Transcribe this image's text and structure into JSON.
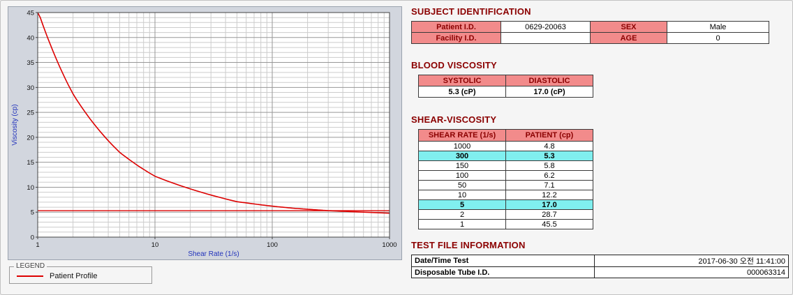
{
  "colors": {
    "accent_red": "#8b0000",
    "cell_pink": "#f28b8b",
    "highlight_cyan": "#80efef",
    "series_red": "#dd0000",
    "axis_label_blue": "#2233bb"
  },
  "chart_data": {
    "type": "line",
    "title": "",
    "xlabel": "Shear Rate (1/s)",
    "ylabel": "Viscosity (cp)",
    "x_scale": "log",
    "xlim": [
      1,
      1000
    ],
    "ylim": [
      0,
      45
    ],
    "x_ticks": [
      1,
      10,
      100,
      1000
    ],
    "y_ticks": [
      0,
      5,
      10,
      15,
      20,
      25,
      30,
      35,
      40,
      45
    ],
    "grid": true,
    "legend_position": "below-left",
    "series": [
      {
        "name": "Patient Profile",
        "color": "#dd0000",
        "x": [
          1,
          2,
          5,
          10,
          50,
          100,
          150,
          300,
          1000
        ],
        "y": [
          45.5,
          28.7,
          17.0,
          12.2,
          7.1,
          6.2,
          5.8,
          5.3,
          4.8
        ]
      },
      {
        "name": "Systolic reference line",
        "type": "hline",
        "color": "#dd0000",
        "y_value": 5.3
      }
    ]
  },
  "legend": {
    "title": "LEGEND",
    "series_label": "Patient Profile"
  },
  "subject": {
    "title": "SUBJECT IDENTIFICATION",
    "rows": [
      {
        "label1": "Patient I.D.",
        "value1": "0629-20063",
        "label2": "SEX",
        "value2": "Male"
      },
      {
        "label1": "Facility I.D.",
        "value1": "",
        "label2": "AGE",
        "value2": "0"
      }
    ]
  },
  "blood_viscosity": {
    "title": "BLOOD VISCOSITY",
    "headers": [
      "SYSTOLIC",
      "DIASTOLIC"
    ],
    "values": [
      "5.3 (cP)",
      "17.0 (cP)"
    ]
  },
  "shear_viscosity": {
    "title": "SHEAR-VISCOSITY",
    "headers": [
      "SHEAR RATE (1/s)",
      "PATIENT (cp)"
    ],
    "rows": [
      {
        "shear_rate": "1000",
        "patient": "4.8",
        "highlight": false
      },
      {
        "shear_rate": "300",
        "patient": "5.3",
        "highlight": true
      },
      {
        "shear_rate": "150",
        "patient": "5.8",
        "highlight": false
      },
      {
        "shear_rate": "100",
        "patient": "6.2",
        "highlight": false
      },
      {
        "shear_rate": "50",
        "patient": "7.1",
        "highlight": false
      },
      {
        "shear_rate": "10",
        "patient": "12.2",
        "highlight": false
      },
      {
        "shear_rate": "5",
        "patient": "17.0",
        "highlight": true
      },
      {
        "shear_rate": "2",
        "patient": "28.7",
        "highlight": false
      },
      {
        "shear_rate": "1",
        "patient": "45.5",
        "highlight": false
      }
    ]
  },
  "test_file": {
    "title": "TEST FILE INFORMATION",
    "rows": [
      {
        "label": "Date/Time Test",
        "value": "2017-06-30 오전 11:41:00"
      },
      {
        "label": "Disposable Tube I.D.",
        "value": "000063314"
      }
    ]
  }
}
